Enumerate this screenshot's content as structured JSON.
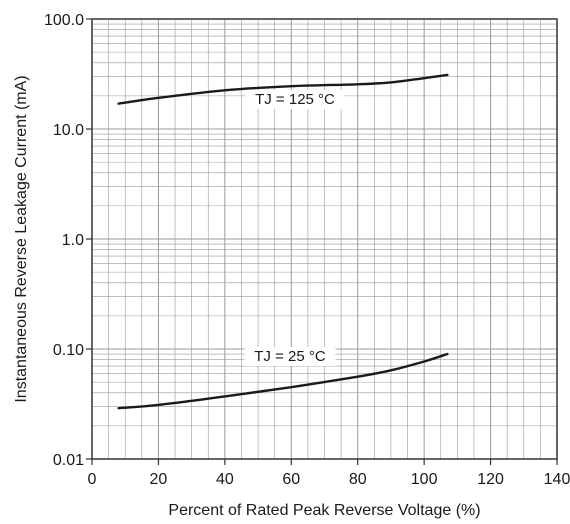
{
  "chart_data": {
    "type": "line",
    "title": "",
    "xlabel": "Percent of Rated Peak Reverse Voltage (%)",
    "ylabel": "Instantaneous Reverse Leakage Current (mA)",
    "xlim": [
      0,
      140
    ],
    "ylim": [
      0.01,
      100
    ],
    "yscale": "log",
    "grid": true,
    "x_ticks": [
      "0",
      "20",
      "40",
      "60",
      "80",
      "100",
      "120",
      "140"
    ],
    "y_ticks": [
      "0.01",
      "0.10",
      "1.0",
      "10.0",
      "100.0"
    ],
    "series": [
      {
        "name": "TJ = 125 °C",
        "x": [
          8,
          20,
          40,
          60,
          80,
          90,
          100,
          107
        ],
        "y": [
          17,
          19.2,
          22.5,
          24.5,
          25.5,
          26.5,
          29,
          31
        ]
      },
      {
        "name": "TJ = 25 °C",
        "x": [
          8,
          20,
          40,
          60,
          80,
          90,
          100,
          107
        ],
        "y": [
          0.029,
          0.031,
          0.037,
          0.045,
          0.056,
          0.064,
          0.077,
          0.09
        ]
      }
    ],
    "colors": {
      "line": "#1a1a1a",
      "grid": "#9a9a9a",
      "frame": "#333333"
    }
  }
}
